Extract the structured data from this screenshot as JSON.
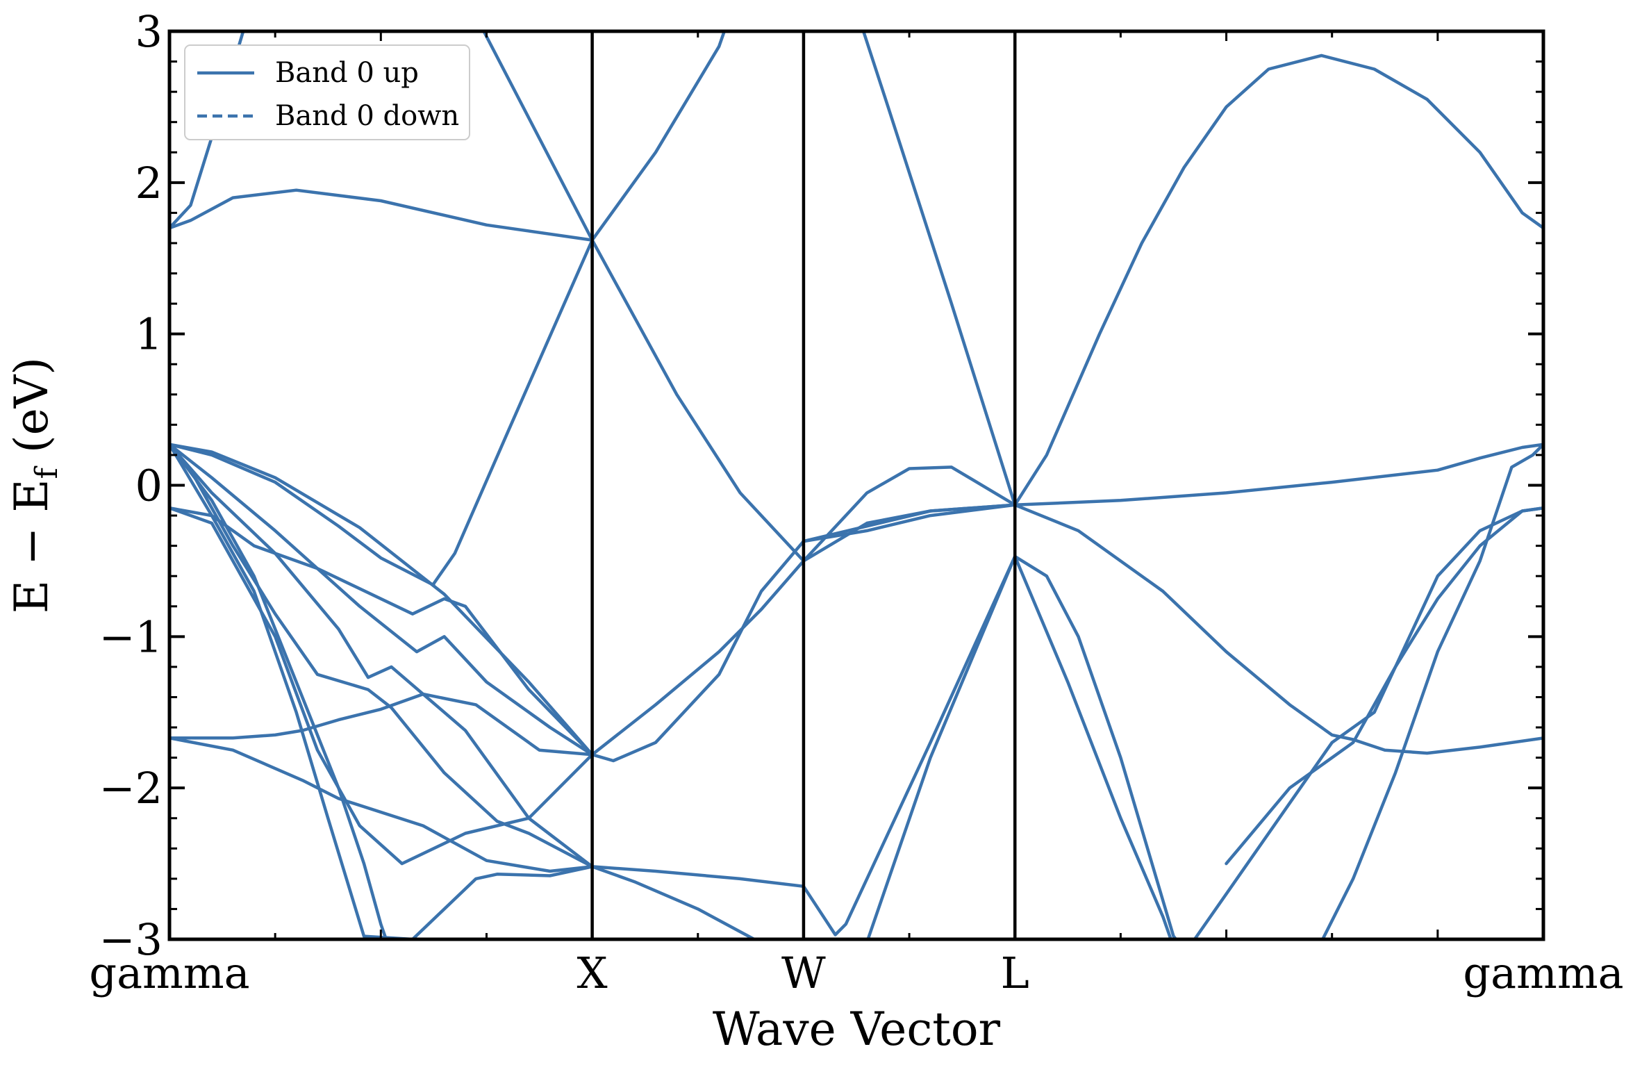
{
  "chart_data": {
    "type": "line",
    "title": "",
    "xlabel": "Wave Vector",
    "ylabel": "E − E_f (eV)",
    "ylabel_main": "E − E",
    "ylabel_sub": "f",
    "ylabel_tail": " (eV)",
    "xlim": [
      0,
      6.5
    ],
    "ylim": [
      -3,
      3
    ],
    "yticks": [
      -3,
      -2,
      -1,
      0,
      1,
      2,
      3
    ],
    "ytick_labels": [
      "−3",
      "−2",
      "−1",
      "0",
      "1",
      "2",
      "3"
    ],
    "kpoints": [
      {
        "label": "gamma",
        "x": 0
      },
      {
        "label": "X",
        "x": 2
      },
      {
        "label": "W",
        "x": 3
      },
      {
        "label": "L",
        "x": 4
      },
      {
        "label": "gamma",
        "x": 6.5
      }
    ],
    "legend": {
      "placement": "top-left",
      "entries": [
        {
          "label": "Band 0 up",
          "style": "solid"
        },
        {
          "label": "Band 0 down",
          "style": "dashed"
        }
      ]
    },
    "color": "#3b73ad",
    "series": [
      {
        "points": [
          [
            0,
            1.7
          ],
          [
            0.1,
            1.75
          ],
          [
            0.3,
            1.9
          ],
          [
            0.6,
            1.95
          ],
          [
            1.0,
            1.88
          ],
          [
            1.5,
            1.72
          ],
          [
            2,
            1.62
          ]
        ]
      },
      {
        "points": [
          [
            0,
            1.7
          ],
          [
            0.1,
            1.85
          ],
          [
            0.2,
            2.3
          ],
          [
            0.37,
            3.1
          ]
        ]
      },
      {
        "points": [
          [
            1.45,
            3.1
          ],
          [
            2,
            1.62
          ],
          [
            2.4,
            0.6
          ],
          [
            2.7,
            -0.05
          ],
          [
            3,
            -0.5
          ]
        ]
      },
      {
        "points": [
          [
            2,
            1.62
          ],
          [
            2.3,
            2.2
          ],
          [
            2.6,
            2.9
          ],
          [
            2.65,
            3.1
          ]
        ]
      },
      {
        "points": [
          [
            1.25,
            -0.65
          ],
          [
            1.35,
            -0.45
          ],
          [
            1.6,
            0.35
          ],
          [
            2,
            1.62
          ]
        ]
      },
      {
        "points": [
          [
            0,
            0.27
          ],
          [
            0.2,
            0.2
          ],
          [
            0.5,
            0.02
          ],
          [
            0.8,
            -0.27
          ],
          [
            1.0,
            -0.48
          ],
          [
            1.25,
            -0.66
          ]
        ]
      },
      {
        "points": [
          [
            0,
            0.27
          ],
          [
            0.2,
            0.22
          ],
          [
            0.5,
            0.05
          ],
          [
            0.9,
            -0.28
          ],
          [
            1.3,
            -0.72
          ],
          [
            1.7,
            -1.3
          ],
          [
            2,
            -1.78
          ]
        ]
      },
      {
        "points": [
          [
            0,
            0.27
          ],
          [
            0.2,
            0.05
          ],
          [
            0.5,
            -0.3
          ],
          [
            0.9,
            -0.8
          ],
          [
            1.17,
            -1.1
          ],
          [
            1.3,
            -1.0
          ],
          [
            1.5,
            -1.3
          ],
          [
            1.8,
            -1.6
          ],
          [
            2,
            -1.78
          ]
        ]
      },
      {
        "points": [
          [
            0,
            0.27
          ],
          [
            0.2,
            -0.05
          ],
          [
            0.5,
            -0.45
          ],
          [
            0.8,
            -0.95
          ],
          [
            0.94,
            -1.27
          ],
          [
            1.05,
            -1.2
          ],
          [
            1.4,
            -1.62
          ],
          [
            1.7,
            -2.2
          ],
          [
            2,
            -2.52
          ]
        ]
      },
      {
        "points": [
          [
            0,
            0.27
          ],
          [
            0.1,
            0.1
          ],
          [
            0.3,
            -0.4
          ],
          [
            0.5,
            -0.85
          ],
          [
            0.7,
            -1.25
          ],
          [
            0.94,
            -1.35
          ],
          [
            1.05,
            -1.47
          ],
          [
            1.3,
            -1.9
          ],
          [
            1.55,
            -2.22
          ],
          [
            1.7,
            -2.3
          ],
          [
            2,
            -2.52
          ]
        ]
      },
      {
        "points": [
          [
            0,
            0.27
          ],
          [
            0.2,
            -0.1
          ],
          [
            0.4,
            -0.6
          ],
          [
            0.6,
            -1.3
          ],
          [
            0.8,
            -2.0
          ],
          [
            0.92,
            -2.5
          ],
          [
            1.0,
            -2.9
          ],
          [
            1.05,
            -3.1
          ]
        ]
      },
      {
        "points": [
          [
            0,
            0.27
          ],
          [
            0.2,
            -0.2
          ],
          [
            0.4,
            -0.7
          ],
          [
            0.6,
            -1.5
          ],
          [
            0.75,
            -2.2
          ],
          [
            0.92,
            -2.98
          ],
          [
            1.15,
            -3.0
          ],
          [
            1.45,
            -2.6
          ],
          [
            1.55,
            -2.57
          ],
          [
            1.8,
            -2.58
          ],
          [
            2,
            -2.52
          ]
        ]
      },
      {
        "points": [
          [
            0,
            -0.15
          ],
          [
            0.2,
            -0.2
          ],
          [
            0.4,
            -0.4
          ],
          [
            0.7,
            -0.55
          ],
          [
            1.15,
            -0.85
          ],
          [
            1.3,
            -0.75
          ],
          [
            1.4,
            -0.8
          ],
          [
            1.7,
            -1.35
          ],
          [
            2,
            -1.78
          ]
        ]
      },
      {
        "points": [
          [
            0,
            -0.15
          ],
          [
            0.2,
            -0.25
          ],
          [
            0.5,
            -1.0
          ],
          [
            0.7,
            -1.75
          ],
          [
            0.9,
            -2.25
          ],
          [
            1.1,
            -2.5
          ],
          [
            1.4,
            -2.3
          ],
          [
            1.7,
            -2.2
          ],
          [
            2,
            -1.78
          ]
        ]
      },
      {
        "points": [
          [
            0,
            -1.67
          ],
          [
            0.3,
            -1.67
          ],
          [
            0.5,
            -1.65
          ],
          [
            0.63,
            -1.62
          ],
          [
            0.8,
            -1.55
          ],
          [
            1.0,
            -1.48
          ],
          [
            1.2,
            -1.38
          ],
          [
            1.45,
            -1.45
          ],
          [
            1.75,
            -1.75
          ],
          [
            2,
            -1.78
          ]
        ]
      },
      {
        "points": [
          [
            0,
            -1.67
          ],
          [
            0.3,
            -1.75
          ],
          [
            0.63,
            -1.95
          ],
          [
            0.8,
            -2.07
          ],
          [
            1.2,
            -2.25
          ],
          [
            1.5,
            -2.48
          ],
          [
            1.8,
            -2.55
          ],
          [
            2,
            -2.52
          ]
        ]
      },
      {
        "points": [
          [
            2,
            -1.78
          ],
          [
            2.1,
            -1.82
          ],
          [
            2.3,
            -1.7
          ],
          [
            2.6,
            -1.25
          ],
          [
            2.8,
            -0.7
          ],
          [
            3,
            -0.37
          ],
          [
            3.3,
            -0.27
          ],
          [
            3.6,
            -0.17
          ],
          [
            4,
            -0.13
          ]
        ]
      },
      {
        "points": [
          [
            2,
            -1.78
          ],
          [
            2.3,
            -1.45
          ],
          [
            2.6,
            -1.1
          ],
          [
            2.8,
            -0.82
          ],
          [
            3,
            -0.5
          ],
          [
            3.3,
            -0.05
          ],
          [
            3.5,
            0.11
          ],
          [
            3.7,
            0.12
          ],
          [
            4,
            -0.13
          ]
        ]
      },
      {
        "points": [
          [
            2,
            -2.52
          ],
          [
            2.3,
            -2.55
          ],
          [
            2.7,
            -2.6
          ],
          [
            3,
            -2.65
          ]
        ]
      },
      {
        "points": [
          [
            2,
            -2.52
          ],
          [
            2.2,
            -2.62
          ],
          [
            2.5,
            -2.8
          ],
          [
            2.7,
            -2.95
          ],
          [
            2.9,
            -3.1
          ]
        ]
      },
      {
        "points": [
          [
            3,
            -0.5
          ],
          [
            3.3,
            -0.25
          ],
          [
            3.6,
            -0.17
          ],
          [
            4,
            -0.13
          ]
        ]
      },
      {
        "points": [
          [
            3,
            -0.37
          ],
          [
            3.3,
            -0.3
          ],
          [
            3.6,
            -0.2
          ],
          [
            4,
            -0.13
          ]
        ]
      },
      {
        "points": [
          [
            3.26,
            3.1
          ],
          [
            3.4,
            2.5
          ],
          [
            3.7,
            1.2
          ],
          [
            4,
            -0.13
          ]
        ]
      },
      {
        "points": [
          [
            3.0,
            -2.65
          ],
          [
            3.15,
            -2.97
          ],
          [
            3.2,
            -2.9
          ],
          [
            3.6,
            -1.7
          ],
          [
            4,
            -0.47
          ]
        ]
      },
      {
        "points": [
          [
            3.28,
            -3.1
          ],
          [
            3.6,
            -1.8
          ],
          [
            4,
            -0.47
          ]
        ]
      },
      {
        "points": [
          [
            4,
            -0.47
          ],
          [
            4.15,
            -0.6
          ],
          [
            4.3,
            -1.0
          ],
          [
            4.5,
            -1.8
          ],
          [
            4.75,
            -2.98
          ],
          [
            4.82,
            -3.1
          ]
        ]
      },
      {
        "points": [
          [
            4,
            -0.47
          ],
          [
            4.25,
            -1.3
          ],
          [
            4.5,
            -2.2
          ],
          [
            4.7,
            -2.85
          ],
          [
            4.75,
            -3.05
          ],
          [
            4.85,
            -3.0
          ],
          [
            5.1,
            -2.5
          ],
          [
            5.5,
            -1.7
          ],
          [
            5.7,
            -1.5
          ],
          [
            6,
            -0.6
          ],
          [
            6.2,
            -0.3
          ],
          [
            6.4,
            -0.17
          ],
          [
            6.5,
            -0.15
          ]
        ]
      },
      {
        "points": [
          [
            4,
            -0.13
          ],
          [
            4.15,
            0.2
          ],
          [
            4.4,
            1.0
          ],
          [
            4.6,
            1.6
          ],
          [
            4.8,
            2.1
          ],
          [
            5.0,
            2.5
          ],
          [
            5.2,
            2.75
          ],
          [
            5.45,
            2.84
          ],
          [
            5.7,
            2.75
          ],
          [
            5.95,
            2.55
          ],
          [
            6.2,
            2.2
          ],
          [
            6.4,
            1.8
          ],
          [
            6.5,
            1.7
          ]
        ]
      },
      {
        "points": [
          [
            4,
            -0.13
          ],
          [
            4.5,
            -0.1
          ],
          [
            5.0,
            -0.05
          ],
          [
            5.5,
            0.02
          ],
          [
            6.0,
            0.1
          ],
          [
            6.2,
            0.18
          ],
          [
            6.4,
            0.25
          ],
          [
            6.5,
            0.27
          ]
        ]
      },
      {
        "points": [
          [
            4,
            -0.13
          ],
          [
            4.3,
            -0.3
          ],
          [
            4.7,
            -0.7
          ],
          [
            5.0,
            -1.1
          ],
          [
            5.3,
            -1.45
          ],
          [
            5.5,
            -1.65
          ],
          [
            5.6,
            -1.68
          ],
          [
            5.75,
            -1.75
          ],
          [
            5.95,
            -1.77
          ],
          [
            6.2,
            -1.73
          ],
          [
            6.5,
            -1.67
          ]
        ]
      },
      {
        "points": [
          [
            5.42,
            -3.1
          ],
          [
            5.6,
            -2.6
          ],
          [
            5.8,
            -1.9
          ],
          [
            6.0,
            -1.1
          ],
          [
            6.2,
            -0.5
          ],
          [
            6.35,
            0.12
          ],
          [
            6.45,
            0.2
          ],
          [
            6.5,
            0.27
          ]
        ]
      },
      {
        "points": [
          [
            5.0,
            -2.5
          ],
          [
            5.3,
            -2.0
          ],
          [
            5.6,
            -1.7
          ],
          [
            5.8,
            -1.2
          ],
          [
            6.0,
            -0.75
          ],
          [
            6.2,
            -0.4
          ],
          [
            6.4,
            -0.17
          ],
          [
            6.5,
            -0.15
          ]
        ]
      }
    ]
  }
}
